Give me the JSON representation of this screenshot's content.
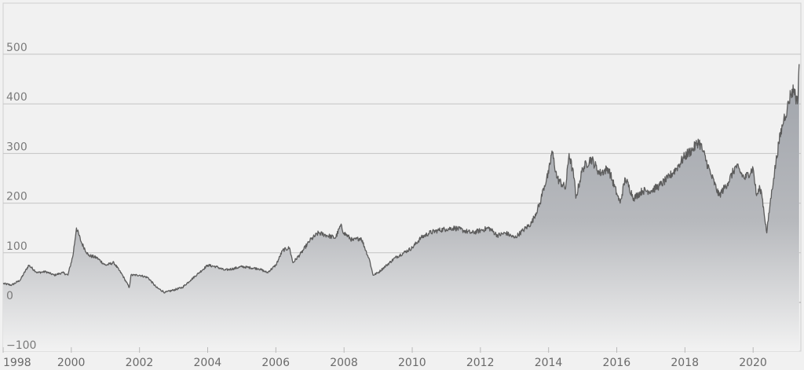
{
  "chart_data": {
    "type": "area",
    "title": "",
    "xlabel": "",
    "ylabel": "",
    "xlim": [
      1998.0,
      2021.4
    ],
    "ylim": [
      -100,
      600
    ],
    "y_ticks": [
      -100,
      0,
      100,
      200,
      300,
      400,
      500
    ],
    "x_ticks": [
      1998,
      2000,
      2002,
      2004,
      2006,
      2008,
      2010,
      2012,
      2014,
      2016,
      2018,
      2020
    ],
    "grid": true,
    "legend": "none",
    "colors": {
      "line": "#5c5c5c",
      "fill_top": "#9fa3aa",
      "fill_bottom": "#f2f2f2",
      "background": "#f1f1f1"
    },
    "series": [
      {
        "x": [
          1998.0,
          1998.25,
          1998.5,
          1998.75,
          1999.0,
          1999.25,
          1999.5,
          1999.75,
          1999.9,
          2000.05,
          2000.15,
          2000.3,
          2000.5,
          2000.75,
          2001.0,
          2001.25,
          2001.5,
          2001.7,
          2001.75,
          2002.0,
          2002.25,
          2002.5,
          2002.75,
          2003.0,
          2003.25,
          2003.5,
          2003.75,
          2004.0,
          2004.25,
          2004.5,
          2004.75,
          2005.0,
          2005.25,
          2005.5,
          2005.75,
          2006.0,
          2006.2,
          2006.4,
          2006.5,
          2006.75,
          2007.0,
          2007.25,
          2007.5,
          2007.75,
          2007.9,
          2008.0,
          2008.25,
          2008.5,
          2008.75,
          2008.85,
          2009.0,
          2009.25,
          2009.5,
          2009.75,
          2010.0,
          2010.25,
          2010.5,
          2010.75,
          2011.0,
          2011.25,
          2011.5,
          2011.75,
          2012.0,
          2012.25,
          2012.5,
          2012.75,
          2013.0,
          2013.25,
          2013.5,
          2013.75,
          2013.85,
          2014.0,
          2014.1,
          2014.25,
          2014.5,
          2014.6,
          2014.75,
          2014.8,
          2015.0,
          2015.25,
          2015.5,
          2015.75,
          2016.0,
          2016.1,
          2016.25,
          2016.5,
          2016.75,
          2017.0,
          2017.25,
          2017.5,
          2017.75,
          2018.0,
          2018.25,
          2018.4,
          2018.5,
          2018.75,
          2019.0,
          2019.25,
          2019.5,
          2019.75,
          2020.0,
          2020.1,
          2020.2,
          2020.25,
          2020.4,
          2020.5,
          2020.6,
          2020.75,
          2020.9,
          2021.0,
          2021.1,
          2021.2,
          2021.3,
          2021.35
        ],
        "y": [
          38,
          35,
          45,
          75,
          60,
          62,
          55,
          60,
          55,
          95,
          150,
          120,
          95,
          90,
          75,
          80,
          55,
          30,
          55,
          55,
          50,
          30,
          20,
          25,
          30,
          45,
          60,
          75,
          72,
          65,
          68,
          72,
          70,
          68,
          60,
          75,
          105,
          110,
          80,
          100,
          125,
          140,
          135,
          130,
          155,
          140,
          125,
          130,
          85,
          55,
          60,
          75,
          90,
          100,
          110,
          130,
          140,
          145,
          148,
          150,
          145,
          140,
          145,
          150,
          135,
          140,
          130,
          145,
          160,
          200,
          230,
          260,
          305,
          250,
          230,
          300,
          250,
          210,
          270,
          290,
          260,
          270,
          220,
          200,
          250,
          210,
          225,
          225,
          235,
          250,
          270,
          295,
          310,
          325,
          310,
          260,
          215,
          240,
          275,
          250,
          270,
          215,
          230,
          220,
          140,
          200,
          250,
          320,
          370,
          390,
          420,
          430,
          400,
          480
        ]
      }
    ]
  }
}
